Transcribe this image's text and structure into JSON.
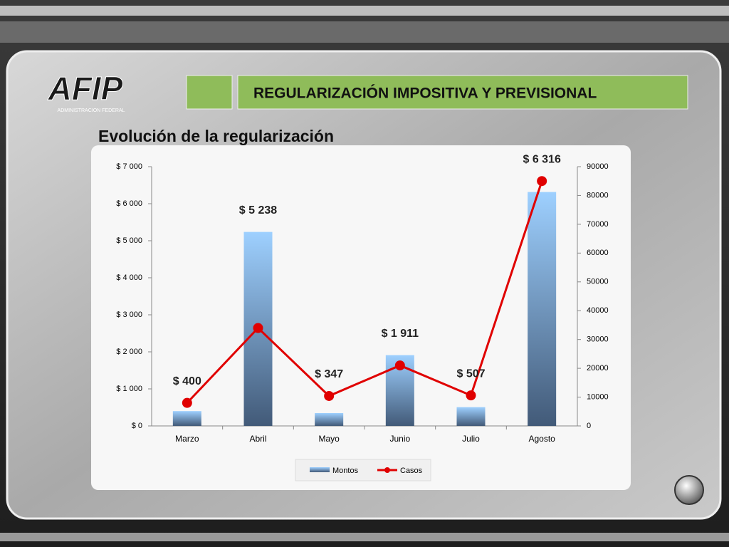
{
  "logo": {
    "name": "AFIP",
    "subtitle": "ADMINISTRACION FEDERAL"
  },
  "header": {
    "title": "REGULARIZACIÓN IMPOSITIVA Y PREVISIONAL"
  },
  "chart_data": {
    "type": "bar",
    "title": "Evolución de la regularización",
    "categories": [
      "Marzo",
      "Abril",
      "Mayo",
      "Junio",
      "Julio",
      "Agosto"
    ],
    "series": [
      {
        "name": "Montos",
        "color": "#6f9dce",
        "type": "bar",
        "values": [
          400,
          5238,
          347,
          1911,
          507,
          6316
        ],
        "value_labels": [
          "$ 400",
          "$ 5 238",
          "$ 347",
          "$ 1 911",
          "$ 507",
          "$ 6 316"
        ]
      },
      {
        "name": "Casos",
        "color": "#e00000",
        "type": "line",
        "axis": "y2",
        "values": [
          8000,
          34000,
          10400,
          21000,
          10600,
          85000
        ]
      }
    ],
    "ylim": [
      0,
      7000
    ],
    "yticks": [
      {
        "value": 0,
        "label": "$ 0"
      },
      {
        "value": 1000,
        "label": "$ 1 000"
      },
      {
        "value": 2000,
        "label": "$ 2 000"
      },
      {
        "value": 3000,
        "label": "$ 3 000"
      },
      {
        "value": 4000,
        "label": "$ 4 000"
      },
      {
        "value": 5000,
        "label": "$ 5 000"
      },
      {
        "value": 6000,
        "label": "$ 6 000"
      },
      {
        "value": 7000,
        "label": "$ 7 000"
      }
    ],
    "y2lim": [
      0,
      90000
    ],
    "y2ticks": [
      0,
      10000,
      20000,
      30000,
      40000,
      50000,
      60000,
      70000,
      80000,
      90000
    ],
    "legend": "bottom",
    "grid": false
  }
}
